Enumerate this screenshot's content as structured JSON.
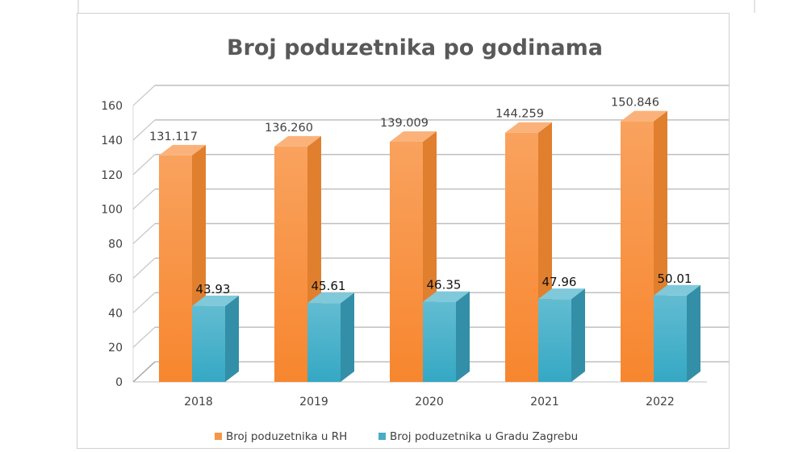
{
  "chart_data": {
    "type": "bar",
    "title": "Broj poduzetnika po godinama",
    "categories": [
      "2018",
      "2019",
      "2020",
      "2021",
      "2022"
    ],
    "series": [
      {
        "name": "Broj poduzetnika u RH",
        "values": [
          131.117,
          136.26,
          139.009,
          144.259,
          150.846
        ],
        "labels": [
          "131.117",
          "136.260",
          "139.009",
          "144.259",
          "150.846"
        ],
        "color": "#F79646"
      },
      {
        "name": "Broj poduzetnika u Gradu Zagrebu",
        "values": [
          43.93,
          45.61,
          46.35,
          47.96,
          50.01
        ],
        "labels": [
          "43.93",
          "45.61",
          "46.35",
          "47.96",
          "50.01"
        ],
        "color": "#4BACC6"
      }
    ],
    "ylim": [
      0,
      160
    ],
    "yticks": [
      "0",
      "20",
      "40",
      "60",
      "80",
      "100",
      "120",
      "140",
      "160"
    ],
    "grid": true,
    "legend_position": "bottom"
  }
}
